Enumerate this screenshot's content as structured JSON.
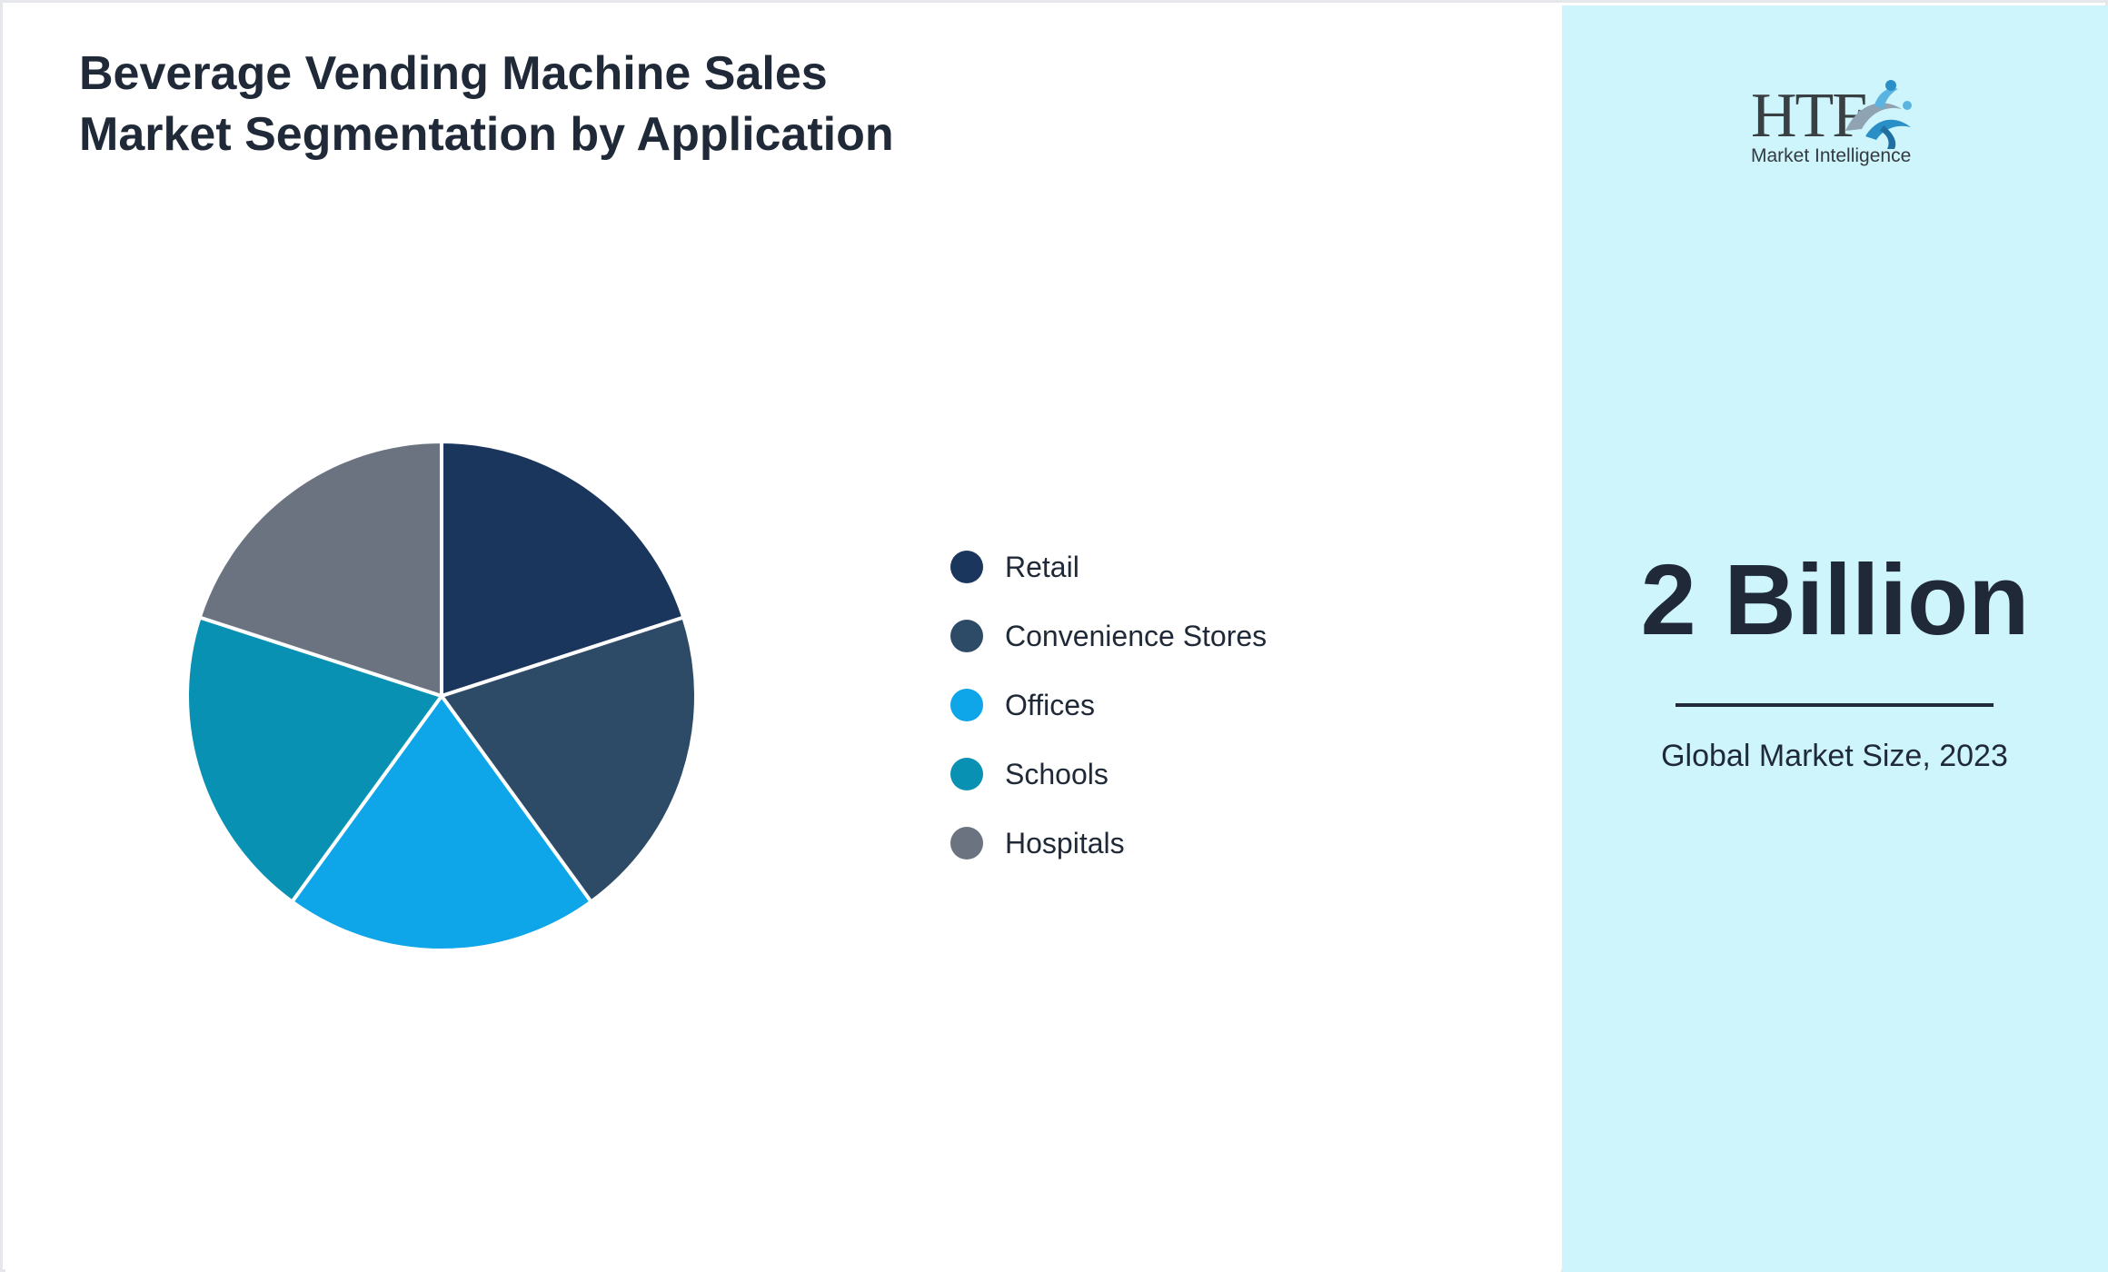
{
  "title": "Beverage Vending Machine Sales Market Segmentation by Application",
  "chart_data": {
    "type": "pie",
    "categories": [
      "Retail",
      "Convenience Stores",
      "Offices",
      "Schools",
      "Hospitals"
    ],
    "values": [
      20,
      20,
      20,
      20,
      20
    ],
    "colors": [
      "#1b365d",
      "#2d4a66",
      "#0ea5e9",
      "#0891b2",
      "#6b7280"
    ],
    "title": "Beverage Vending Machine Sales Market Segmentation by Application",
    "legend": "right"
  },
  "side": {
    "logo_text": "HTF",
    "logo_subtitle": "Market Intelligence",
    "market_value": "2 Billion",
    "market_caption": "Global Market Size, 2023"
  }
}
